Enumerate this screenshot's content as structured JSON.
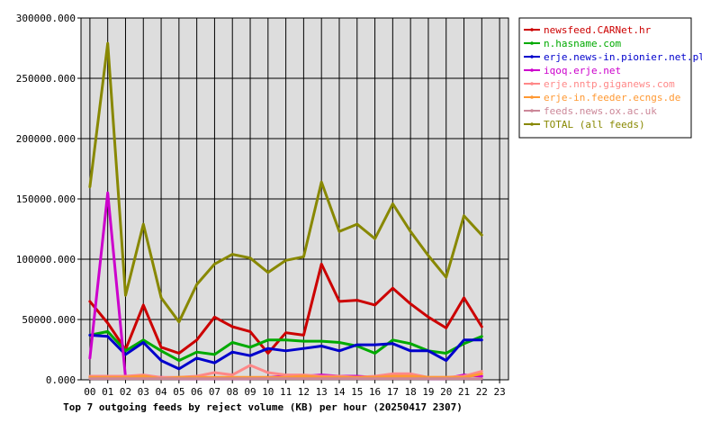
{
  "chart_data": {
    "type": "line",
    "title": "Top 7 outgoing feeds by reject volume (KB) per hour (20250417 2307)",
    "xlabel": "",
    "ylabel": "",
    "ylim": [
      0,
      300000
    ],
    "y_ticks": [
      "0.000",
      "50000.000",
      "100000.000",
      "150000.000",
      "200000.000",
      "250000.000",
      "300000.000"
    ],
    "x_ticks": [
      "00",
      "01",
      "02",
      "03",
      "04",
      "05",
      "06",
      "07",
      "08",
      "09",
      "10",
      "11",
      "12",
      "13",
      "14",
      "15",
      "16",
      "17",
      "18",
      "19",
      "20",
      "21",
      "22",
      "23"
    ],
    "grid": true,
    "legend_position": "right",
    "series": [
      {
        "name": "newsfeed.CARNet.hr",
        "color": "#cc0000",
        "values": [
          65000,
          47000,
          25000,
          62000,
          27000,
          22000,
          33000,
          52000,
          44000,
          40000,
          22000,
          39000,
          37000,
          96000,
          65000,
          66000,
          62000,
          76000,
          63000,
          52000,
          43000,
          68000,
          44000
        ]
      },
      {
        "name": "n.hasname.com",
        "color": "#00aa00",
        "values": [
          37000,
          40000,
          24000,
          33000,
          24000,
          16000,
          23000,
          21000,
          31000,
          27000,
          33000,
          33000,
          32000,
          32000,
          31000,
          28000,
          22000,
          33000,
          30000,
          24000,
          22000,
          30000,
          36000
        ]
      },
      {
        "name": "erje.news-in.pionier.net.pl",
        "color": "#0000cc",
        "values": [
          37000,
          36000,
          21000,
          31000,
          16000,
          9000,
          18000,
          14000,
          23000,
          20000,
          26000,
          24000,
          26000,
          28000,
          24000,
          29000,
          29000,
          30000,
          24000,
          24000,
          16000,
          33000,
          33000
        ]
      },
      {
        "name": "iqoq.erje.net",
        "color": "#cc00cc",
        "values": [
          18000,
          155000,
          2000,
          2000,
          2000,
          1000,
          1000,
          1000,
          1000,
          1000,
          2000,
          3000,
          3000,
          4000,
          3000,
          3000,
          2000,
          3000,
          2000,
          1000,
          1000,
          4000,
          3000
        ]
      },
      {
        "name": "erje.nntp.giganews.com",
        "color": "#ff8888",
        "values": [
          3000,
          3000,
          3000,
          4000,
          2000,
          2000,
          3000,
          6000,
          4000,
          12000,
          6000,
          4000,
          4000,
          3000,
          3000,
          2000,
          3000,
          5000,
          5000,
          2000,
          2000,
          3000,
          7000
        ]
      },
      {
        "name": "erje-in.feeder.ecngs.de",
        "color": "#ff9933",
        "values": [
          2000,
          2000,
          2000,
          3000,
          1000,
          2000,
          2000,
          2000,
          2000,
          2000,
          2000,
          2000,
          3000,
          2000,
          2000,
          2000,
          2000,
          3000,
          3000,
          2000,
          2000,
          2000,
          5000
        ]
      },
      {
        "name": "feeds.news.ox.ac.uk",
        "color": "#cc8899",
        "values": [
          1000,
          1000,
          1000,
          1000,
          1000,
          1000,
          1000,
          1000,
          1000,
          1000,
          1000,
          1000,
          1000,
          1000,
          1000,
          1000,
          1000,
          1000,
          1000,
          1000,
          1000,
          1000,
          1000
        ]
      },
      {
        "name": "TOTAL (all feeds)",
        "color": "#888800",
        "values": [
          160000,
          279000,
          70000,
          129000,
          68000,
          48000,
          79000,
          96000,
          104000,
          101000,
          89000,
          99000,
          102000,
          164000,
          123000,
          129000,
          117000,
          146000,
          123000,
          103000,
          85000,
          136000,
          120000
        ]
      }
    ]
  }
}
